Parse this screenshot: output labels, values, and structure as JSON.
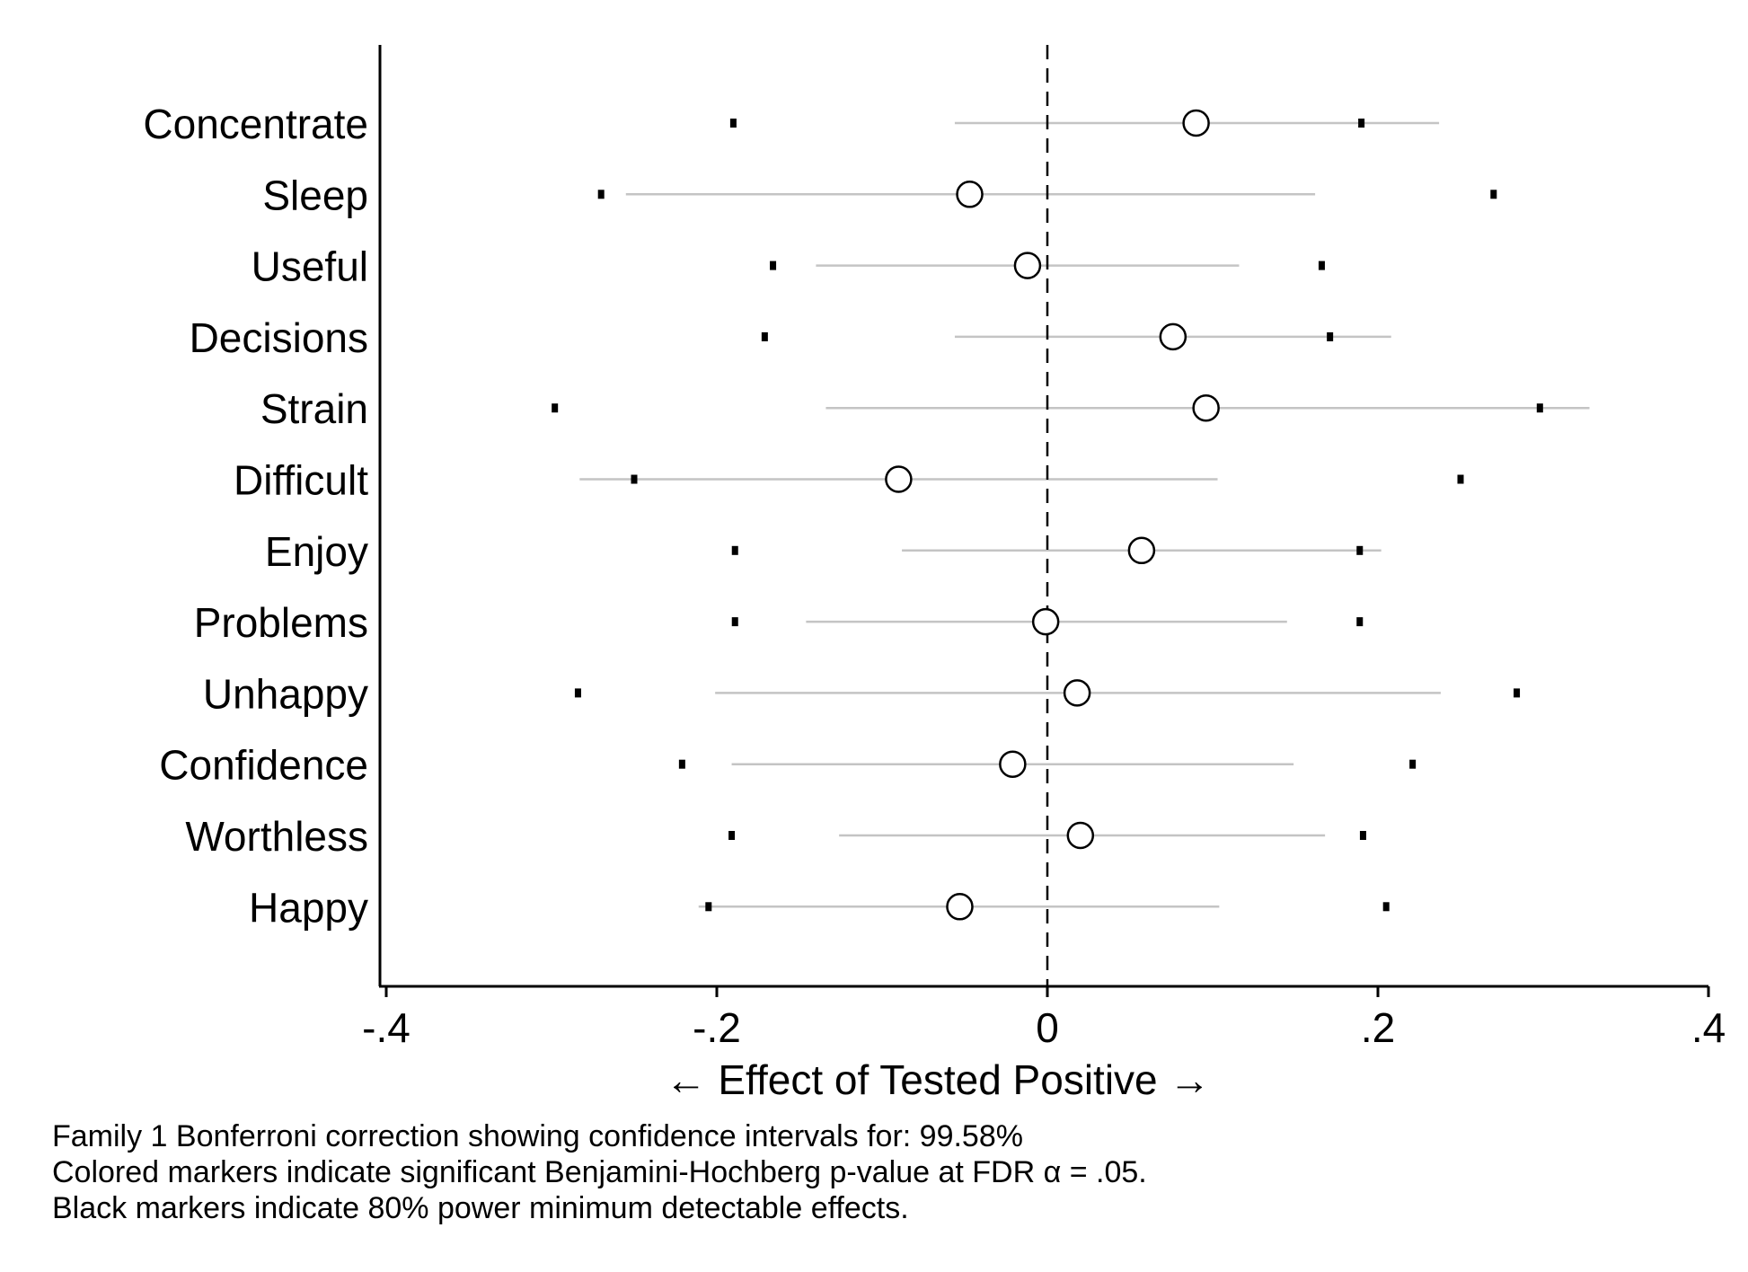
{
  "chart_data": {
    "type": "scatter",
    "orientation": "horizontal",
    "xlabel": "← Effect of Tested Positive →",
    "xlim": [
      -0.4,
      0.4
    ],
    "x_ticks": [
      -0.4,
      -0.2,
      0,
      0.2,
      0.4
    ],
    "x_tick_labels": [
      "-.4",
      "-.2",
      "0",
      ".2",
      ".4"
    ],
    "reference_line": 0,
    "grid": false,
    "categories": [
      "Concentrate",
      "Sleep",
      "Useful",
      "Decisions",
      "Strain",
      "Difficult",
      "Enjoy",
      "Problems",
      "Unhappy",
      "Confidence",
      "Worthless",
      "Happy"
    ],
    "estimates": [
      0.09,
      -0.047,
      -0.012,
      0.076,
      0.096,
      -0.09,
      0.057,
      -0.001,
      0.018,
      -0.021,
      0.02,
      -0.053
    ],
    "ci_low": [
      -0.056,
      -0.255,
      -0.14,
      -0.056,
      -0.134,
      -0.283,
      -0.088,
      -0.146,
      -0.201,
      -0.191,
      -0.126,
      -0.211
    ],
    "ci_high": [
      0.237,
      0.162,
      0.116,
      0.208,
      0.328,
      0.103,
      0.202,
      0.145,
      0.238,
      0.149,
      0.168,
      0.104
    ],
    "mde_low": [
      -0.19,
      -0.27,
      -0.166,
      -0.171,
      -0.298,
      -0.25,
      -0.189,
      -0.189,
      -0.284,
      -0.221,
      -0.191,
      -0.205
    ],
    "mde_high": [
      0.19,
      0.27,
      0.166,
      0.171,
      0.298,
      0.25,
      0.189,
      0.189,
      0.284,
      0.221,
      0.191,
      0.205
    ],
    "colors": {
      "ci": "#c4c4c4",
      "marker_fill": "#ffffff",
      "marker_edge": "#000000",
      "mde": "#000000",
      "axis": "#000000"
    }
  },
  "notes": [
    "Family 1 Bonferroni correction showing confidence intervals for: 99.58%",
    "Colored markers indicate significant Benjamini-Hochberg p-value at FDR α = .05.",
    "Black markers indicate 80% power minimum detectable effects."
  ]
}
